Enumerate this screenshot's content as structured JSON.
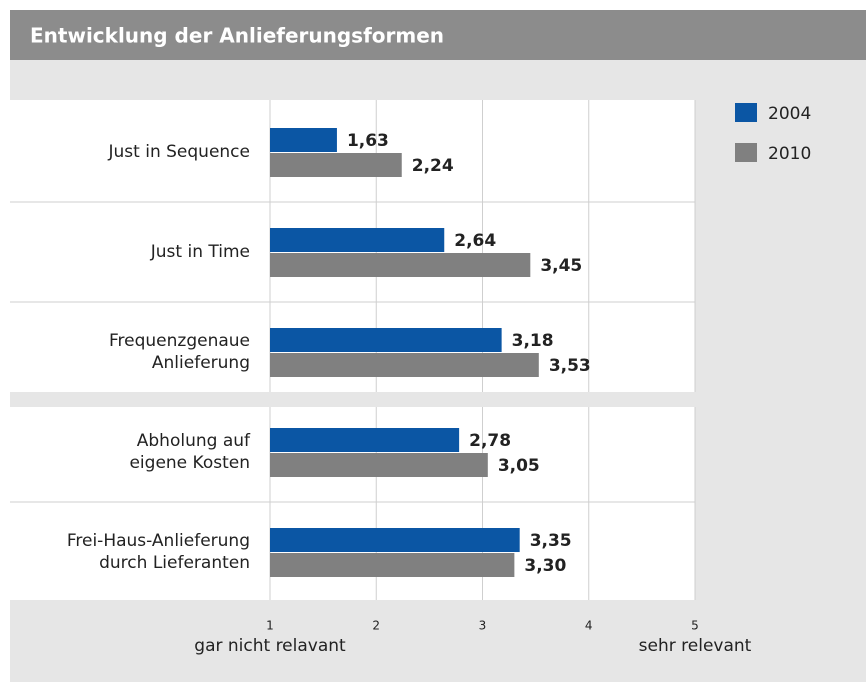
{
  "chart_data": {
    "type": "hbar",
    "title": "Entwicklung der Anlieferungsformen",
    "categories": [
      "Just in Sequence",
      "Just in Time",
      "Frequenzgenaue\nAnlieferung",
      "Abholung auf\neigene Kosten",
      "Frei-Haus-Anlieferung\ndurch Lieferanten"
    ],
    "series": [
      {
        "name": "2004",
        "color": "#0b56a4",
        "values": [
          1.63,
          2.64,
          3.18,
          2.78,
          3.35
        ],
        "value_labels": [
          "1,63",
          "2,64",
          "3,18",
          "2,78",
          "3,35"
        ]
      },
      {
        "name": "2010",
        "color": "#808080",
        "values": [
          2.24,
          3.45,
          3.53,
          3.05,
          3.3
        ],
        "value_labels": [
          "2,24",
          "3,45",
          "3,53",
          "3,05",
          "3,30"
        ]
      }
    ],
    "xlim": [
      1,
      5
    ],
    "xticks": [
      1,
      2,
      3,
      4,
      5
    ],
    "axis_labels": [
      "gar nicht relavant",
      "sehr relevant"
    ],
    "grid": true,
    "legend": "right"
  }
}
